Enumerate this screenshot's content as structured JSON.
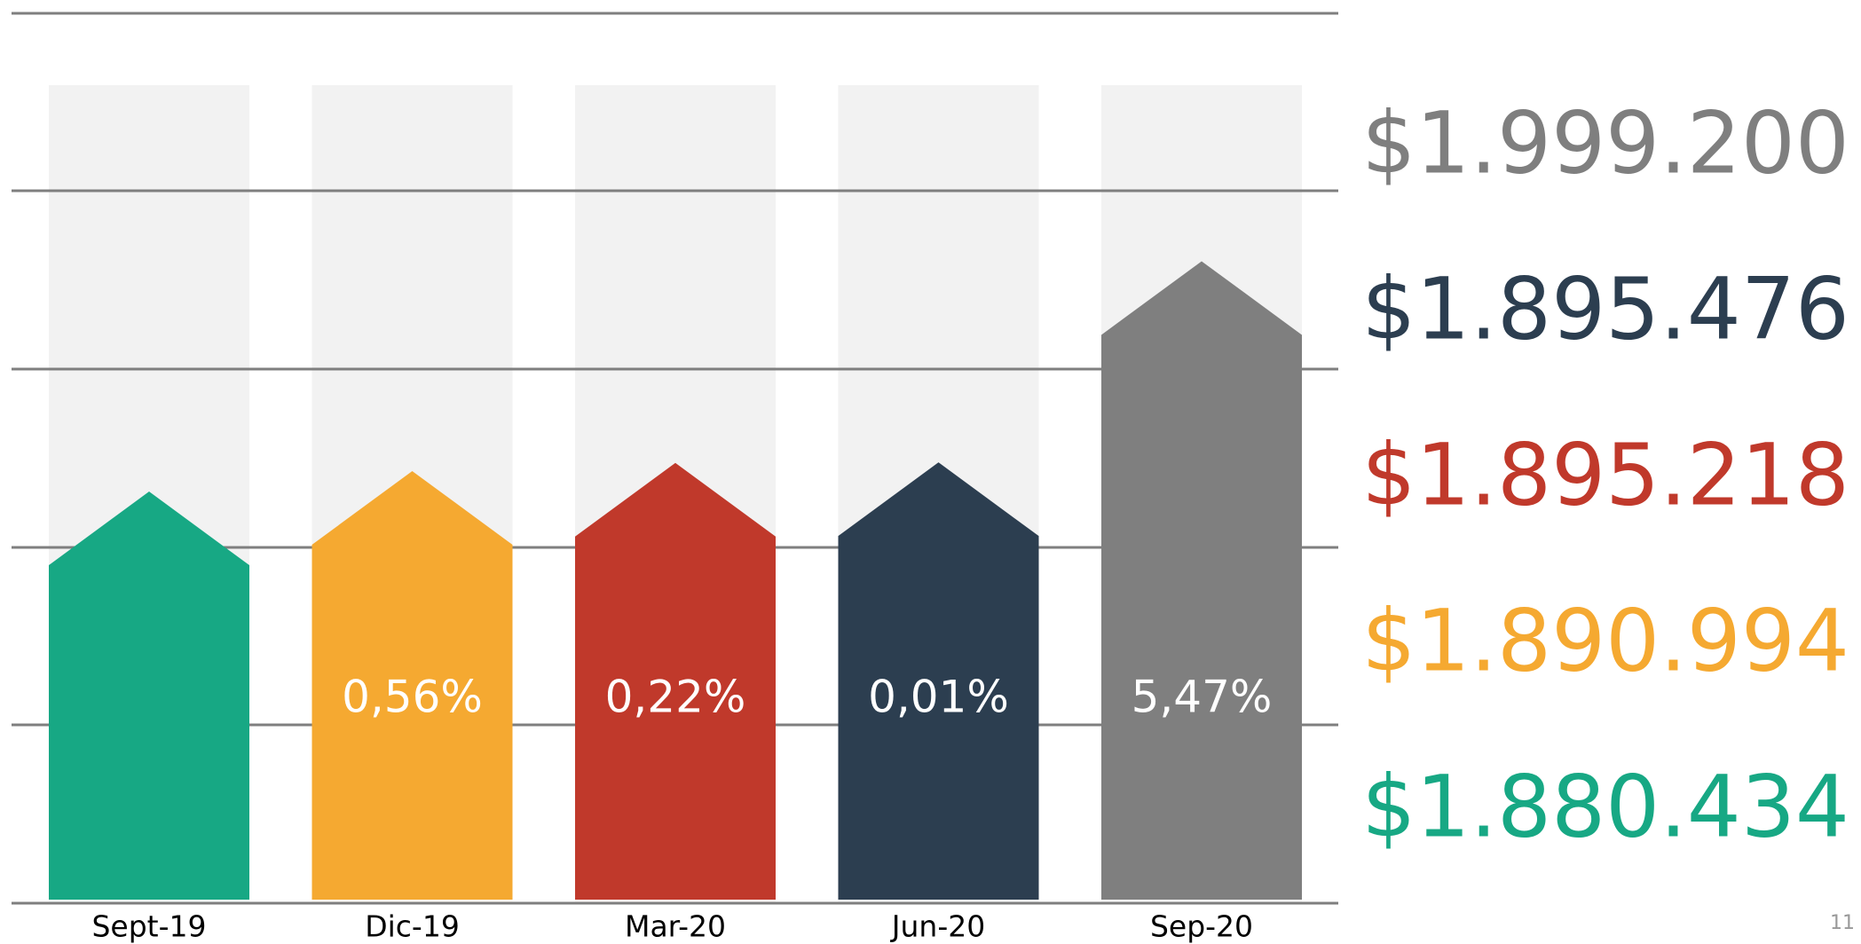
{
  "chart_data": {
    "type": "arrow-bar",
    "categories": [
      "Sept-19",
      "Dic-19",
      "Mar-20",
      "Jun-20",
      "Sep-20"
    ],
    "values": [
      1880434,
      1890994,
      1895218,
      1895476,
      1999200
    ],
    "value_labels": [
      "$1.880.434",
      "$1.890.994",
      "$1.895.218",
      "$1.895.476",
      "$1.999.200"
    ],
    "change_values": [
      null,
      0.56,
      0.22,
      0.01,
      5.47
    ],
    "change_labels": [
      null,
      "0,56%",
      "0,22%",
      "0,01%",
      "5,47%"
    ],
    "colors": [
      "#17a884",
      "#f5a931",
      "#c0392b",
      "#2c3e50",
      "#7f7f7f"
    ],
    "ylim": [
      1670000,
      2090000
    ],
    "page_number": "11"
  }
}
